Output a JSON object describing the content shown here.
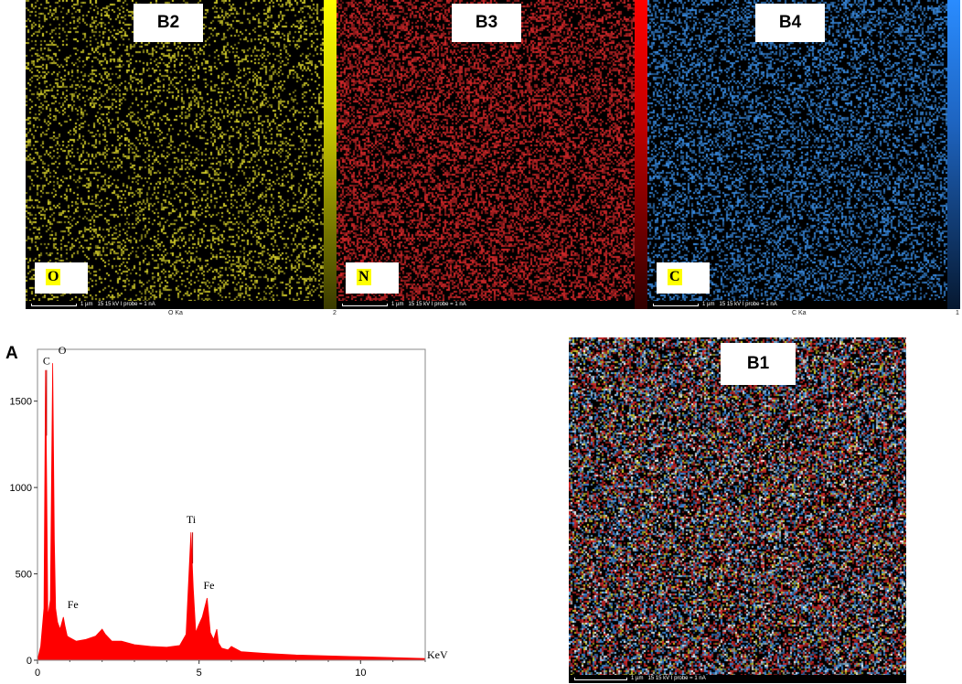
{
  "panels": {
    "b2": {
      "label": "B2",
      "element": "O",
      "line_label": "O Ka",
      "scale_max": "2",
      "dot_color": "#d8d22a"
    },
    "b3": {
      "label": "B3",
      "element": "N",
      "dot_color": "#d8282a"
    },
    "b4": {
      "label": "B4",
      "element": "C",
      "line_label": "C Ka",
      "scale_max": "1",
      "dot_color": "#3a8ee6"
    },
    "b1": {
      "label": "B1"
    }
  },
  "scalebar": {
    "length": "1 µm",
    "conditions": "15 15 kV   I probe = 1 nA"
  },
  "spectrum": {
    "panel_label": "A",
    "x_unit": "KeV",
    "peak_labels": [
      "C",
      "O",
      "Fe",
      "Ti",
      "Fe"
    ]
  },
  "chart_data": {
    "type": "area",
    "xlabel": "KeV",
    "xlim": [
      0,
      12
    ],
    "ylim": [
      0,
      1800
    ],
    "x_ticks": [
      0,
      5,
      10
    ],
    "y_ticks": [
      0,
      500,
      1000,
      1500
    ],
    "color": "#ff0000",
    "series": [
      {
        "x": [
          0.0,
          0.1,
          0.2,
          0.25,
          0.28,
          0.32,
          0.4,
          0.47,
          0.52,
          0.56,
          0.62,
          0.7,
          0.8,
          0.85,
          0.92,
          1.0,
          1.2,
          1.5,
          1.8,
          2.0,
          2.1,
          2.3,
          2.6,
          3.0,
          3.5,
          4.0,
          4.4,
          4.6,
          4.75,
          4.82,
          4.9,
          4.98,
          5.1,
          5.25,
          5.35,
          5.45,
          5.55,
          5.6,
          5.7,
          5.9,
          6.0,
          6.3,
          7.0,
          8.0,
          9.0,
          10.0,
          11.0,
          12.0
        ],
        "y": [
          0,
          80,
          300,
          1680,
          1100,
          250,
          350,
          1720,
          700,
          300,
          220,
          180,
          250,
          200,
          140,
          130,
          110,
          120,
          140,
          180,
          150,
          110,
          110,
          90,
          80,
          75,
          85,
          150,
          740,
          420,
          160,
          200,
          250,
          360,
          160,
          120,
          180,
          100,
          70,
          60,
          80,
          50,
          40,
          30,
          25,
          20,
          15,
          10
        ]
      }
    ],
    "peaks": [
      {
        "label": "C",
        "x": 0.28,
        "y": 1680
      },
      {
        "label": "O",
        "x": 0.53,
        "y": 1720
      },
      {
        "label": "Fe",
        "x": 0.7,
        "y": 250
      },
      {
        "label": "Ti",
        "x": 4.78,
        "y": 740
      },
      {
        "label": "Fe",
        "x": 5.25,
        "y": 360
      }
    ]
  }
}
